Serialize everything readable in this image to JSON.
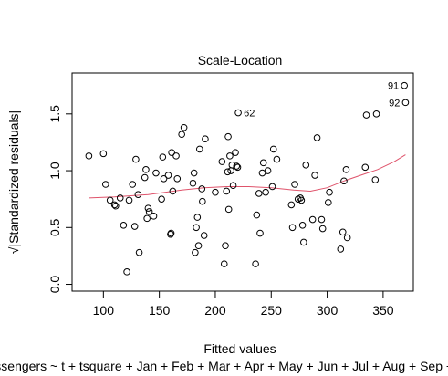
{
  "chart_data": {
    "type": "scatter",
    "title": "Scale-Location",
    "xlabel": "Fitted values",
    "ylabel": "√|Standardized residuals|",
    "subtitle": "lm(Passengers ~ t + tsquare + Jan + Feb + Mar + Apr + May + Jun + Jul + Aug + Sep + Oct + Nov)",
    "xlim": [
      72,
      377
    ],
    "ylim": [
      -0.06,
      1.86
    ],
    "x_ticks": [
      100,
      150,
      200,
      250,
      300,
      350
    ],
    "y_ticks": [
      0.0,
      0.5,
      1.0,
      1.5
    ],
    "x_tick_labels": [
      "100",
      "150",
      "200",
      "250",
      "300",
      "350"
    ],
    "y_tick_labels": [
      "0.0",
      "0.5",
      "1.0",
      "1.5"
    ],
    "grid": false,
    "colors": {
      "points": "#000000",
      "smoother": "#df536b"
    },
    "points": [
      {
        "x": 87,
        "y": 1.13
      },
      {
        "x": 100,
        "y": 1.15
      },
      {
        "x": 102,
        "y": 0.88
      },
      {
        "x": 106,
        "y": 0.74
      },
      {
        "x": 110,
        "y": 0.7
      },
      {
        "x": 111,
        "y": 0.69
      },
      {
        "x": 115,
        "y": 0.76
      },
      {
        "x": 118,
        "y": 0.52
      },
      {
        "x": 121,
        "y": 0.11
      },
      {
        "x": 123,
        "y": 0.74
      },
      {
        "x": 126,
        "y": 0.88
      },
      {
        "x": 128,
        "y": 0.51
      },
      {
        "x": 129,
        "y": 1.1
      },
      {
        "x": 131,
        "y": 0.79
      },
      {
        "x": 132,
        "y": 0.28
      },
      {
        "x": 137,
        "y": 0.94
      },
      {
        "x": 138,
        "y": 1.01
      },
      {
        "x": 139,
        "y": 0.58
      },
      {
        "x": 140,
        "y": 0.67
      },
      {
        "x": 141,
        "y": 0.64
      },
      {
        "x": 145,
        "y": 0.6
      },
      {
        "x": 147,
        "y": 0.98
      },
      {
        "x": 152,
        "y": 0.75
      },
      {
        "x": 153,
        "y": 1.12
      },
      {
        "x": 154,
        "y": 0.93
      },
      {
        "x": 158,
        "y": 0.96
      },
      {
        "x": 160,
        "y": 0.44
      },
      {
        "x": 160.5,
        "y": 0.45
      },
      {
        "x": 161,
        "y": 1.16
      },
      {
        "x": 162,
        "y": 0.82
      },
      {
        "x": 165,
        "y": 1.13
      },
      {
        "x": 166,
        "y": 0.93
      },
      {
        "x": 170,
        "y": 1.32
      },
      {
        "x": 172,
        "y": 1.38
      },
      {
        "x": 180,
        "y": 0.89
      },
      {
        "x": 181,
        "y": 0.98
      },
      {
        "x": 182,
        "y": 0.28
      },
      {
        "x": 183,
        "y": 0.5
      },
      {
        "x": 184,
        "y": 0.59
      },
      {
        "x": 185,
        "y": 0.34
      },
      {
        "x": 186,
        "y": 1.19
      },
      {
        "x": 188,
        "y": 0.84
      },
      {
        "x": 188.5,
        "y": 0.73
      },
      {
        "x": 190,
        "y": 0.43
      },
      {
        "x": 191,
        "y": 1.28
      },
      {
        "x": 200,
        "y": 0.81
      },
      {
        "x": 206,
        "y": 1.08
      },
      {
        "x": 208,
        "y": 0.18
      },
      {
        "x": 209,
        "y": 0.34
      },
      {
        "x": 210,
        "y": 0.82
      },
      {
        "x": 211,
        "y": 0.99
      },
      {
        "x": 211.5,
        "y": 1.3
      },
      {
        "x": 212,
        "y": 0.66
      },
      {
        "x": 213,
        "y": 1.13
      },
      {
        "x": 214,
        "y": 1.0
      },
      {
        "x": 215,
        "y": 1.05
      },
      {
        "x": 216,
        "y": 0.87
      },
      {
        "x": 218,
        "y": 1.16
      },
      {
        "x": 219,
        "y": 1.04
      },
      {
        "x": 220,
        "y": 1.03
      },
      {
        "x": 220.5,
        "y": 1.51
      },
      {
        "x": 236,
        "y": 0.18
      },
      {
        "x": 237,
        "y": 0.61
      },
      {
        "x": 239,
        "y": 0.8
      },
      {
        "x": 240,
        "y": 0.45
      },
      {
        "x": 242,
        "y": 0.98
      },
      {
        "x": 243,
        "y": 1.07
      },
      {
        "x": 245,
        "y": 0.81
      },
      {
        "x": 247,
        "y": 1.0
      },
      {
        "x": 251,
        "y": 0.86
      },
      {
        "x": 252,
        "y": 1.19
      },
      {
        "x": 255,
        "y": 1.1
      },
      {
        "x": 268,
        "y": 0.7
      },
      {
        "x": 269,
        "y": 0.5
      },
      {
        "x": 271,
        "y": 0.88
      },
      {
        "x": 274,
        "y": 0.75
      },
      {
        "x": 276,
        "y": 0.76
      },
      {
        "x": 277,
        "y": 0.74
      },
      {
        "x": 278,
        "y": 0.52
      },
      {
        "x": 279,
        "y": 0.37
      },
      {
        "x": 281,
        "y": 1.05
      },
      {
        "x": 287,
        "y": 0.57
      },
      {
        "x": 289,
        "y": 0.96
      },
      {
        "x": 291,
        "y": 1.29
      },
      {
        "x": 295,
        "y": 0.57
      },
      {
        "x": 296,
        "y": 0.49
      },
      {
        "x": 301,
        "y": 0.72
      },
      {
        "x": 302,
        "y": 0.81
      },
      {
        "x": 312,
        "y": 0.31
      },
      {
        "x": 314,
        "y": 0.46
      },
      {
        "x": 315,
        "y": 0.91
      },
      {
        "x": 317,
        "y": 1.01
      },
      {
        "x": 318,
        "y": 0.41
      },
      {
        "x": 334,
        "y": 1.03
      },
      {
        "x": 335,
        "y": 1.49
      },
      {
        "x": 343,
        "y": 0.92
      },
      {
        "x": 344,
        "y": 1.5
      },
      {
        "x": 369,
        "y": 1.75
      },
      {
        "x": 370,
        "y": 1.6
      }
    ],
    "smoother": {
      "x": [
        87,
        110,
        140,
        170,
        190,
        210,
        230,
        250,
        270,
        285,
        300,
        315,
        330,
        345,
        360,
        370
      ],
      "y": [
        0.76,
        0.77,
        0.79,
        0.83,
        0.85,
        0.86,
        0.86,
        0.85,
        0.83,
        0.82,
        0.85,
        0.91,
        0.96,
        1.01,
        1.08,
        1.14
      ]
    },
    "annotations": [
      {
        "label": "91",
        "x": 369,
        "y": 1.75,
        "side": "left"
      },
      {
        "label": "92",
        "x": 370,
        "y": 1.6,
        "side": "left"
      },
      {
        "label": "62",
        "x": 220.5,
        "y": 1.51,
        "side": "right"
      }
    ]
  }
}
